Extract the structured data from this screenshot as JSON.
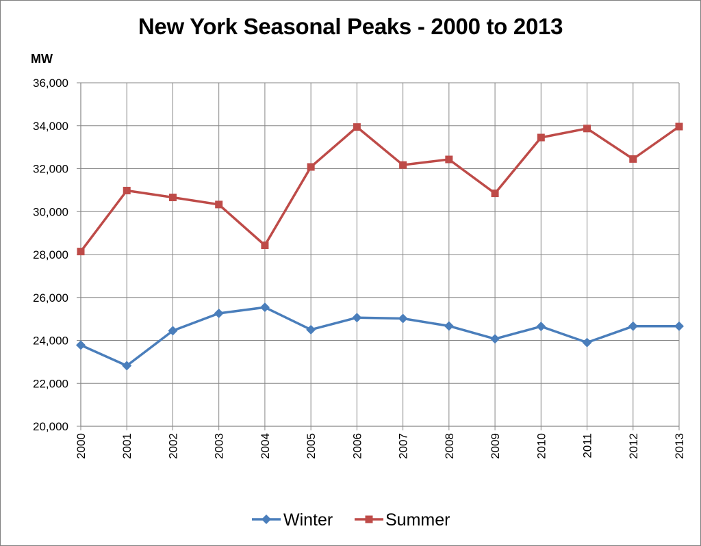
{
  "chart_data": {
    "type": "line",
    "title": "New York Seasonal Peaks - 2000 to 2013",
    "ylabel": "MW",
    "xlabel": "",
    "categories": [
      "2000",
      "2001",
      "2002",
      "2003",
      "2004",
      "2005",
      "2006",
      "2007",
      "2008",
      "2009",
      "2010",
      "2011",
      "2012",
      "2013"
    ],
    "ylim": [
      20000,
      36000
    ],
    "yticks": [
      20000,
      22000,
      24000,
      26000,
      28000,
      30000,
      32000,
      34000,
      36000
    ],
    "ytick_labels": [
      "20,000",
      "22,000",
      "24,000",
      "26,000",
      "28,000",
      "30,000",
      "32,000",
      "34,000",
      "36,000"
    ],
    "grid": true,
    "legend": "bottom",
    "series": [
      {
        "name": "Winter",
        "color": "#4a7ebb",
        "marker": "diamond",
        "values": [
          23780,
          22820,
          24450,
          25260,
          25540,
          24500,
          25060,
          25020,
          24670,
          24070,
          24650,
          23900,
          24660,
          24660
        ]
      },
      {
        "name": "Summer",
        "color": "#be4b48",
        "marker": "square",
        "values": [
          28140,
          30980,
          30660,
          30330,
          28430,
          32080,
          33940,
          32170,
          32430,
          30850,
          33450,
          33870,
          32450,
          33960
        ]
      }
    ]
  }
}
